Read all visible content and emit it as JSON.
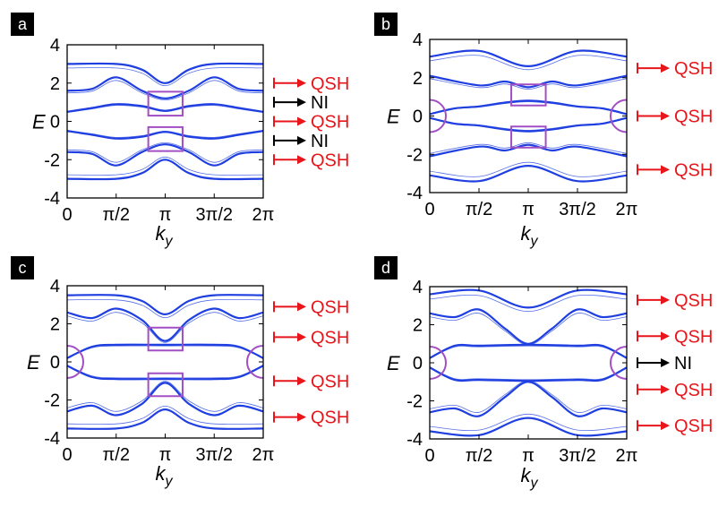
{
  "colors": {
    "band": "#1f3fe0",
    "qsh": "#e8151b",
    "ni": "#000000",
    "highlight": "#a24fc4",
    "frame": "#000000"
  },
  "chart_data": [
    {
      "type": "line",
      "panel": "a",
      "xlabel": "k_y",
      "ylabel": "E",
      "xlim": [
        0,
        6.2832
      ],
      "ylim": [
        -4,
        4
      ],
      "x_tick_labels": [
        "0",
        "π/2",
        "π",
        "3π/2",
        "2π"
      ],
      "y_tick_labels": [
        "4",
        "2",
        "0",
        "-2",
        "-4"
      ],
      "gap_labels": [
        {
          "text": "QSH",
          "energy": 2.0,
          "kind": "QSH"
        },
        {
          "text": "NI",
          "energy": 1.0,
          "kind": "NI"
        },
        {
          "text": "QSH",
          "energy": 0.0,
          "kind": "QSH"
        },
        {
          "text": "NI",
          "energy": -1.0,
          "kind": "NI"
        },
        {
          "text": "QSH",
          "energy": -2.0,
          "kind": "QSH"
        }
      ],
      "series": [
        {
          "name": "band 1",
          "values": [
            [
              0,
              3.0
            ],
            [
              1.571,
              3.0
            ],
            [
              2.4,
              2.7
            ],
            [
              3.14,
              2.0
            ],
            [
              3.9,
              2.7
            ],
            [
              4.71,
              3.0
            ],
            [
              6.28,
              3.0
            ]
          ]
        },
        {
          "name": "band 2",
          "values": [
            [
              0,
              1.6
            ],
            [
              0.8,
              1.7
            ],
            [
              1.571,
              2.3
            ],
            [
              2.4,
              1.6
            ],
            [
              3.14,
              1.2
            ],
            [
              3.9,
              1.6
            ],
            [
              4.71,
              2.3
            ],
            [
              5.5,
              1.7
            ],
            [
              6.28,
              1.6
            ]
          ]
        },
        {
          "name": "band 3",
          "values": [
            [
              0,
              0.5
            ],
            [
              0.8,
              0.7
            ],
            [
              1.571,
              0.9
            ],
            [
              2.4,
              0.8
            ],
            [
              3.14,
              0.55
            ],
            [
              3.9,
              0.8
            ],
            [
              4.71,
              0.9
            ],
            [
              5.5,
              0.7
            ],
            [
              6.28,
              0.5
            ]
          ]
        },
        {
          "name": "band 4",
          "values": [
            [
              0,
              -0.5
            ],
            [
              0.8,
              -0.7
            ],
            [
              1.571,
              -0.9
            ],
            [
              2.4,
              -0.8
            ],
            [
              3.14,
              -0.55
            ],
            [
              3.9,
              -0.8
            ],
            [
              4.71,
              -0.9
            ],
            [
              5.5,
              -0.7
            ],
            [
              6.28,
              -0.5
            ]
          ]
        },
        {
          "name": "band 5",
          "values": [
            [
              0,
              -1.6
            ],
            [
              0.8,
              -1.7
            ],
            [
              1.571,
              -2.3
            ],
            [
              2.4,
              -1.6
            ],
            [
              3.14,
              -1.2
            ],
            [
              3.9,
              -1.6
            ],
            [
              4.71,
              -2.3
            ],
            [
              5.5,
              -1.7
            ],
            [
              6.28,
              -1.6
            ]
          ]
        },
        {
          "name": "band 6",
          "values": [
            [
              0,
              -3.0
            ],
            [
              1.571,
              -3.0
            ],
            [
              2.4,
              -2.7
            ],
            [
              3.14,
              -2.0
            ],
            [
              3.9,
              -2.7
            ],
            [
              4.71,
              -3.0
            ],
            [
              6.28,
              -3.0
            ]
          ]
        }
      ],
      "highlight_boxes": [
        {
          "shape": "rect",
          "k_range": [
            2.6,
            3.7
          ],
          "e_range": [
            0.3,
            1.55
          ]
        },
        {
          "shape": "rect",
          "k_range": [
            2.6,
            3.7
          ],
          "e_range": [
            -1.55,
            -0.3
          ]
        }
      ]
    },
    {
      "type": "line",
      "panel": "b",
      "xlabel": "k_y",
      "ylabel": "E",
      "xlim": [
        0,
        6.2832
      ],
      "ylim": [
        -4,
        4
      ],
      "x_tick_labels": [
        "0",
        "π/2",
        "π",
        "3π/2",
        "2π"
      ],
      "y_tick_labels": [
        "4",
        "2",
        "0",
        "-2",
        "-4"
      ],
      "gap_labels": [
        {
          "text": "QSH",
          "energy": 2.5,
          "kind": "QSH"
        },
        {
          "text": "QSH",
          "energy": 0.0,
          "kind": "QSH"
        },
        {
          "text": "QSH",
          "energy": -2.8,
          "kind": "QSH"
        }
      ],
      "series": [
        {
          "name": "band 1",
          "values": [
            [
              0,
              3.1
            ],
            [
              1.571,
              3.4
            ],
            [
              3.14,
              2.6
            ],
            [
              4.71,
              3.4
            ],
            [
              6.28,
              3.1
            ]
          ]
        },
        {
          "name": "band 2",
          "values": [
            [
              0,
              2.1
            ],
            [
              1.571,
              1.6
            ],
            [
              2.4,
              1.8
            ],
            [
              3.14,
              1.5
            ],
            [
              3.9,
              1.8
            ],
            [
              4.71,
              1.6
            ],
            [
              6.28,
              2.1
            ]
          ]
        },
        {
          "name": "band 3",
          "values": [
            [
              0,
              0.1
            ],
            [
              0.8,
              0.4
            ],
            [
              1.571,
              0.5
            ],
            [
              2.4,
              0.7
            ],
            [
              3.14,
              0.8
            ],
            [
              3.9,
              0.7
            ],
            [
              4.71,
              0.5
            ],
            [
              5.5,
              0.4
            ],
            [
              6.28,
              0.1
            ]
          ]
        },
        {
          "name": "band 4",
          "values": [
            [
              0,
              -0.1
            ],
            [
              0.8,
              -0.4
            ],
            [
              1.571,
              -0.5
            ],
            [
              2.4,
              -0.7
            ],
            [
              3.14,
              -0.8
            ],
            [
              3.9,
              -0.7
            ],
            [
              4.71,
              -0.5
            ],
            [
              5.5,
              -0.4
            ],
            [
              6.28,
              -0.1
            ]
          ]
        },
        {
          "name": "band 5",
          "values": [
            [
              0,
              -2.1
            ],
            [
              1.571,
              -1.6
            ],
            [
              2.4,
              -1.8
            ],
            [
              3.14,
              -1.5
            ],
            [
              3.9,
              -1.8
            ],
            [
              4.71,
              -1.6
            ],
            [
              6.28,
              -2.1
            ]
          ]
        },
        {
          "name": "band 6",
          "values": [
            [
              0,
              -3.1
            ],
            [
              1.571,
              -3.4
            ],
            [
              3.14,
              -2.6
            ],
            [
              4.71,
              -3.4
            ],
            [
              6.28,
              -3.1
            ]
          ]
        }
      ],
      "highlight_boxes": [
        {
          "shape": "rect",
          "k_range": [
            2.6,
            3.7
          ],
          "e_range": [
            0.55,
            1.65
          ]
        },
        {
          "shape": "rect",
          "k_range": [
            2.6,
            3.7
          ],
          "e_range": [
            -1.65,
            -0.55
          ]
        },
        {
          "shape": "arc",
          "k_center": 0,
          "e_center": 0,
          "side": "left"
        },
        {
          "shape": "arc",
          "k_center": 6.2832,
          "e_center": 0,
          "side": "right"
        }
      ]
    },
    {
      "type": "line",
      "panel": "c",
      "xlabel": "k_y",
      "ylabel": "E",
      "xlim": [
        0,
        6.2832
      ],
      "ylim": [
        -4,
        4
      ],
      "x_tick_labels": [
        "0",
        "π/2",
        "π",
        "3π/2",
        "2π"
      ],
      "y_tick_labels": [
        "4",
        "2",
        "0",
        "-2",
        "-4"
      ],
      "gap_labels": [
        {
          "text": "QSH",
          "energy": 2.9,
          "kind": "QSH"
        },
        {
          "text": "QSH",
          "energy": 1.3,
          "kind": "QSH"
        },
        {
          "text": "QSH",
          "energy": -1.0,
          "kind": "QSH"
        },
        {
          "text": "QSH",
          "energy": -2.9,
          "kind": "QSH"
        }
      ],
      "series": [
        {
          "name": "band 1",
          "values": [
            [
              0,
              3.5
            ],
            [
              1.571,
              3.5
            ],
            [
              2.4,
              3.2
            ],
            [
              3.14,
              2.5
            ],
            [
              3.9,
              3.2
            ],
            [
              4.71,
              3.5
            ],
            [
              6.28,
              3.5
            ]
          ]
        },
        {
          "name": "band 2",
          "values": [
            [
              0,
              2.6
            ],
            [
              0.8,
              2.3
            ],
            [
              1.571,
              2.8
            ],
            [
              2.4,
              2.2
            ],
            [
              3.14,
              1.1
            ],
            [
              3.9,
              2.2
            ],
            [
              4.71,
              2.8
            ],
            [
              5.5,
              2.3
            ],
            [
              6.28,
              2.6
            ]
          ]
        },
        {
          "name": "band 3",
          "values": [
            [
              0,
              0.2
            ],
            [
              0.8,
              0.8
            ],
            [
              1.571,
              0.9
            ],
            [
              3.14,
              0.9
            ],
            [
              4.71,
              0.9
            ],
            [
              5.5,
              0.8
            ],
            [
              6.28,
              0.2
            ]
          ]
        },
        {
          "name": "band 4",
          "values": [
            [
              0,
              -0.2
            ],
            [
              0.8,
              -0.8
            ],
            [
              1.571,
              -0.9
            ],
            [
              3.14,
              -0.9
            ],
            [
              4.71,
              -0.9
            ],
            [
              5.5,
              -0.8
            ],
            [
              6.28,
              -0.2
            ]
          ]
        },
        {
          "name": "band 5",
          "values": [
            [
              0,
              -2.6
            ],
            [
              0.8,
              -2.3
            ],
            [
              1.571,
              -2.8
            ],
            [
              2.4,
              -2.2
            ],
            [
              3.14,
              -1.1
            ],
            [
              3.9,
              -2.2
            ],
            [
              4.71,
              -2.8
            ],
            [
              5.5,
              -2.3
            ],
            [
              6.28,
              -2.6
            ]
          ]
        },
        {
          "name": "band 6",
          "values": [
            [
              0,
              -3.5
            ],
            [
              1.571,
              -3.5
            ],
            [
              2.4,
              -3.2
            ],
            [
              3.14,
              -2.5
            ],
            [
              3.9,
              -3.2
            ],
            [
              4.71,
              -3.5
            ],
            [
              6.28,
              -3.5
            ]
          ]
        }
      ],
      "highlight_boxes": [
        {
          "shape": "rect",
          "k_range": [
            2.6,
            3.7
          ],
          "e_range": [
            0.6,
            1.8
          ]
        },
        {
          "shape": "rect",
          "k_range": [
            2.6,
            3.7
          ],
          "e_range": [
            -1.8,
            -0.6
          ]
        },
        {
          "shape": "arc",
          "k_center": 0,
          "e_center": 0,
          "side": "left"
        },
        {
          "shape": "arc",
          "k_center": 6.2832,
          "e_center": 0,
          "side": "right"
        }
      ]
    },
    {
      "type": "line",
      "panel": "d",
      "xlabel": "k_y",
      "ylabel": "E",
      "xlim": [
        0,
        6.2832
      ],
      "ylim": [
        -4,
        4
      ],
      "x_tick_labels": [
        "0",
        "π/2",
        "π",
        "3π/2",
        "2π"
      ],
      "y_tick_labels": [
        "4",
        "2",
        "0",
        "-2",
        "-4"
      ],
      "gap_labels": [
        {
          "text": "QSH",
          "energy": 3.3,
          "kind": "QSH"
        },
        {
          "text": "QSH",
          "energy": 1.4,
          "kind": "QSH"
        },
        {
          "text": "NI",
          "energy": 0.0,
          "kind": "NI"
        },
        {
          "text": "QSH",
          "energy": -1.4,
          "kind": "QSH"
        },
        {
          "text": "QSH",
          "energy": -3.3,
          "kind": "QSH"
        }
      ],
      "series": [
        {
          "name": "band 1",
          "values": [
            [
              0,
              3.6
            ],
            [
              1.571,
              3.8
            ],
            [
              3.14,
              2.9
            ],
            [
              4.71,
              3.8
            ],
            [
              6.28,
              3.6
            ]
          ]
        },
        {
          "name": "band 2",
          "values": [
            [
              0,
              2.6
            ],
            [
              0.8,
              2.4
            ],
            [
              1.571,
              2.8
            ],
            [
              2.4,
              1.8
            ],
            [
              3.14,
              1.0
            ],
            [
              3.9,
              1.8
            ],
            [
              4.71,
              2.8
            ],
            [
              5.5,
              2.4
            ],
            [
              6.28,
              2.6
            ]
          ]
        },
        {
          "name": "band 3",
          "values": [
            [
              0,
              0.25
            ],
            [
              0.8,
              0.9
            ],
            [
              1.571,
              0.9
            ],
            [
              3.14,
              0.95
            ],
            [
              4.71,
              0.9
            ],
            [
              5.5,
              0.9
            ],
            [
              6.28,
              0.25
            ]
          ]
        },
        {
          "name": "band 4",
          "values": [
            [
              0,
              -0.25
            ],
            [
              0.8,
              -0.9
            ],
            [
              1.571,
              -0.9
            ],
            [
              3.14,
              -0.95
            ],
            [
              4.71,
              -0.9
            ],
            [
              5.5,
              -0.9
            ],
            [
              6.28,
              -0.25
            ]
          ]
        },
        {
          "name": "band 5",
          "values": [
            [
              0,
              -2.6
            ],
            [
              0.8,
              -2.4
            ],
            [
              1.571,
              -2.8
            ],
            [
              2.4,
              -1.8
            ],
            [
              3.14,
              -1.0
            ],
            [
              3.9,
              -1.8
            ],
            [
              4.71,
              -2.8
            ],
            [
              5.5,
              -2.4
            ],
            [
              6.28,
              -2.6
            ]
          ]
        },
        {
          "name": "band 6",
          "values": [
            [
              0,
              -3.6
            ],
            [
              1.571,
              -3.8
            ],
            [
              3.14,
              -2.9
            ],
            [
              4.71,
              -3.8
            ],
            [
              6.28,
              -3.6
            ]
          ]
        }
      ],
      "highlight_boxes": [
        {
          "shape": "arc",
          "k_center": 0,
          "e_center": 0,
          "side": "left"
        },
        {
          "shape": "arc",
          "k_center": 6.2832,
          "e_center": 0,
          "side": "right"
        }
      ]
    }
  ]
}
